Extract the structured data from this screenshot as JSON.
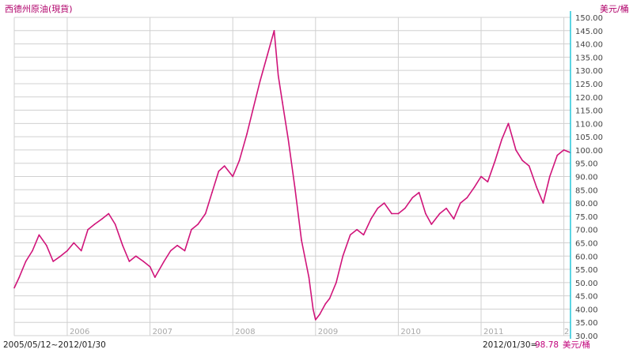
{
  "colors": {
    "series": "#d0147a",
    "axis": "#26c6da",
    "grid": "#d0d0d0",
    "title": "#b0006a"
  },
  "chart_data": {
    "type": "line",
    "title": "西德州原油(現貨)",
    "ylabel": "美元/桶",
    "ylim": [
      30,
      150
    ],
    "y_ticks": [
      "150.00",
      "145.00",
      "140.00",
      "135.00",
      "130.00",
      "125.00",
      "120.00",
      "115.00",
      "110.00",
      "105.00",
      "100.00",
      "95.00",
      "90.00",
      "85.00",
      "80.00",
      "75.00",
      "70.00",
      "65.00",
      "60.00",
      "55.00",
      "50.00",
      "45.00",
      "40.00",
      "35.00",
      "30.00"
    ],
    "x_ticks": [
      {
        "label": "2006",
        "t": 2006.0
      },
      {
        "label": "2007",
        "t": 2007.0
      },
      {
        "label": "2008",
        "t": 2008.0
      },
      {
        "label": "2009",
        "t": 2009.0
      },
      {
        "label": "2010",
        "t": 2010.0
      },
      {
        "label": "2011",
        "t": 2011.0
      },
      {
        "label": "2",
        "t": 2012.0
      }
    ],
    "xlim": [
      2005.36,
      2012.08
    ],
    "grid": true,
    "series": [
      {
        "x": [
          2005.36,
          2005.42,
          2005.5,
          2005.58,
          2005.66,
          2005.75,
          2005.83,
          2005.92,
          2006.0,
          2006.08,
          2006.17,
          2006.25,
          2006.33,
          2006.42,
          2006.5,
          2006.58,
          2006.67,
          2006.75,
          2006.83,
          2006.92,
          2007.0,
          2007.06,
          2007.17,
          2007.25,
          2007.33,
          2007.42,
          2007.5,
          2007.58,
          2007.67,
          2007.75,
          2007.83,
          2007.9,
          2008.0,
          2008.08,
          2008.17,
          2008.25,
          2008.33,
          2008.42,
          2008.5,
          2008.55,
          2008.6,
          2008.67,
          2008.75,
          2008.83,
          2008.92,
          2008.97,
          2009.0,
          2009.05,
          2009.12,
          2009.17,
          2009.25,
          2009.33,
          2009.42,
          2009.5,
          2009.58,
          2009.67,
          2009.75,
          2009.83,
          2009.92,
          2010.0,
          2010.08,
          2010.17,
          2010.25,
          2010.33,
          2010.4,
          2010.5,
          2010.58,
          2010.67,
          2010.75,
          2010.83,
          2010.92,
          2011.0,
          2011.08,
          2011.17,
          2011.25,
          2011.33,
          2011.42,
          2011.5,
          2011.58,
          2011.67,
          2011.75,
          2011.83,
          2011.92,
          2012.0,
          2012.08
        ],
        "y": [
          48,
          52,
          58,
          62,
          68,
          64,
          58,
          60,
          62,
          65,
          62,
          70,
          72,
          74,
          76,
          72,
          64,
          58,
          60,
          58,
          56,
          52,
          58,
          62,
          64,
          62,
          70,
          72,
          76,
          84,
          92,
          94,
          90,
          96,
          106,
          116,
          126,
          136,
          145,
          128,
          118,
          104,
          86,
          66,
          52,
          40,
          36,
          38,
          42,
          44,
          50,
          60,
          68,
          70,
          68,
          74,
          78,
          80,
          76,
          76,
          78,
          82,
          84,
          76,
          72,
          76,
          78,
          74,
          80,
          82,
          86,
          90,
          88,
          96,
          104,
          110,
          100,
          96,
          94,
          86,
          80,
          90,
          98,
          100,
          99
        ]
      }
    ],
    "footer_left": "2005/05/12~2012/01/30",
    "footer_right_date": "2012/01/30=",
    "footer_right_value": "98.78",
    "footer_right_unit": "美元/桶"
  }
}
